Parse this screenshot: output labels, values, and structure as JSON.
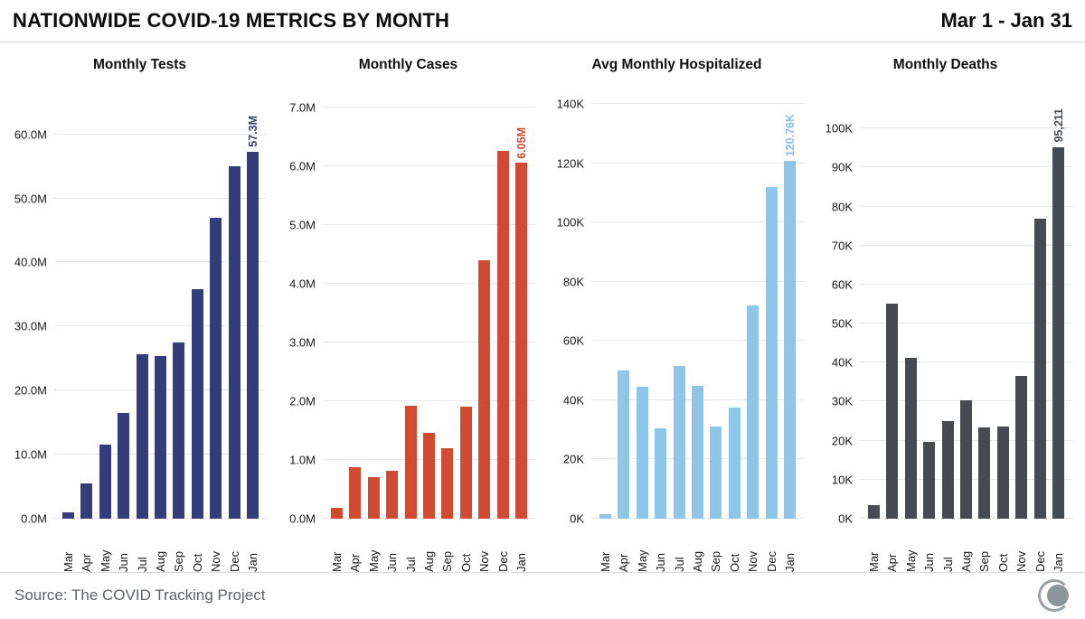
{
  "header": {
    "title": "NATIONWIDE COVID-19 METRICS BY MONTH",
    "date_range": "Mar 1 - Jan 31"
  },
  "footer": {
    "source": "Source: The COVID Tracking Project",
    "logo": "covid-tracking-project-crescent-logo",
    "logo_color": "#9aa0a4"
  },
  "months": [
    "Mar",
    "Apr",
    "May",
    "Jun",
    "Jul",
    "Aug",
    "Sep",
    "Oct",
    "Nov",
    "Dec",
    "Jan"
  ],
  "chart_data": [
    {
      "type": "bar",
      "title": "Monthly Tests",
      "categories": [
        "Mar",
        "Apr",
        "May",
        "Jun",
        "Jul",
        "Aug",
        "Sep",
        "Oct",
        "Nov",
        "Dec",
        "Jan"
      ],
      "values": [
        1.0,
        5.5,
        11.5,
        16.5,
        25.7,
        25.4,
        27.5,
        35.8,
        47.0,
        55.0,
        57.3
      ],
      "unit": "millions",
      "bar_color": "#353c7a",
      "annotation": "57.3M",
      "annotation_color": "#353c7a",
      "ymax": 67,
      "ylim": [
        0,
        67
      ],
      "grid": true,
      "ticks": [
        {
          "value": 0,
          "label": "0.0M"
        },
        {
          "value": 10,
          "label": "10.0M"
        },
        {
          "value": 20,
          "label": "20.0M"
        },
        {
          "value": 30,
          "label": "30.0M"
        },
        {
          "value": 40,
          "label": "40.0M"
        },
        {
          "value": 50,
          "label": "50.0M"
        },
        {
          "value": 60,
          "label": "60.0M"
        }
      ]
    },
    {
      "type": "bar",
      "title": "Monthly Cases",
      "categories": [
        "Mar",
        "Apr",
        "May",
        "Jun",
        "Jul",
        "Aug",
        "Sep",
        "Oct",
        "Nov",
        "Dec",
        "Jan"
      ],
      "values": [
        0.19,
        0.88,
        0.7,
        0.82,
        1.92,
        1.46,
        1.2,
        1.9,
        4.4,
        6.25,
        6.05
      ],
      "unit": "millions",
      "bar_color": "#d14b32",
      "annotation": "6.05M",
      "annotation_color": "#d14b32",
      "ymax": 7.3,
      "ylim": [
        0,
        7.3
      ],
      "grid": true,
      "ticks": [
        {
          "value": 0,
          "label": "0.0M"
        },
        {
          "value": 1,
          "label": "1.0M"
        },
        {
          "value": 2,
          "label": "2.0M"
        },
        {
          "value": 3,
          "label": "3.0M"
        },
        {
          "value": 4,
          "label": "4.0M"
        },
        {
          "value": 5,
          "label": "5.0M"
        },
        {
          "value": 6,
          "label": "6.0M"
        },
        {
          "value": 7,
          "label": "7.0M"
        }
      ]
    },
    {
      "type": "bar",
      "title": "Avg Monthly Hospitalized",
      "categories": [
        "Mar",
        "Apr",
        "May",
        "Jun",
        "Jul",
        "Aug",
        "Sep",
        "Oct",
        "Nov",
        "Dec",
        "Jan"
      ],
      "values": [
        1.5,
        50.0,
        44.5,
        30.5,
        51.5,
        45.0,
        31.0,
        37.5,
        72.0,
        112.0,
        120.76
      ],
      "unit": "thousands",
      "bar_color": "#8ec6ea",
      "annotation": "120.76K",
      "annotation_color": "#85bfe6",
      "ymax": 145,
      "ylim": [
        0,
        145
      ],
      "grid": true,
      "ticks": [
        {
          "value": 0,
          "label": "0K"
        },
        {
          "value": 20,
          "label": "20K"
        },
        {
          "value": 40,
          "label": "40K"
        },
        {
          "value": 60,
          "label": "60K"
        },
        {
          "value": 80,
          "label": "80K"
        },
        {
          "value": 100,
          "label": "100K"
        },
        {
          "value": 120,
          "label": "120K"
        },
        {
          "value": 140,
          "label": "140K"
        }
      ]
    },
    {
      "type": "bar",
      "title": "Monthly Deaths",
      "categories": [
        "Mar",
        "Apr",
        "May",
        "Jun",
        "Jul",
        "Aug",
        "Sep",
        "Oct",
        "Nov",
        "Dec",
        "Jan"
      ],
      "values": [
        3.5,
        55.2,
        41.2,
        19.7,
        25.0,
        30.3,
        23.4,
        23.7,
        36.6,
        77.0,
        95.211
      ],
      "unit": "thousands",
      "bar_color": "#474b4f",
      "annotation": "95,211",
      "annotation_color": "#474b4f",
      "ymax": 110,
      "ylim": [
        0,
        110
      ],
      "grid": true,
      "ticks": [
        {
          "value": 0,
          "label": "0K"
        },
        {
          "value": 10,
          "label": "10K"
        },
        {
          "value": 20,
          "label": "20K"
        },
        {
          "value": 30,
          "label": "30K"
        },
        {
          "value": 40,
          "label": "40K"
        },
        {
          "value": 50,
          "label": "50K"
        },
        {
          "value": 60,
          "label": "60K"
        },
        {
          "value": 70,
          "label": "70K"
        },
        {
          "value": 80,
          "label": "80K"
        },
        {
          "value": 90,
          "label": "90K"
        },
        {
          "value": 100,
          "label": "100K"
        }
      ]
    }
  ]
}
